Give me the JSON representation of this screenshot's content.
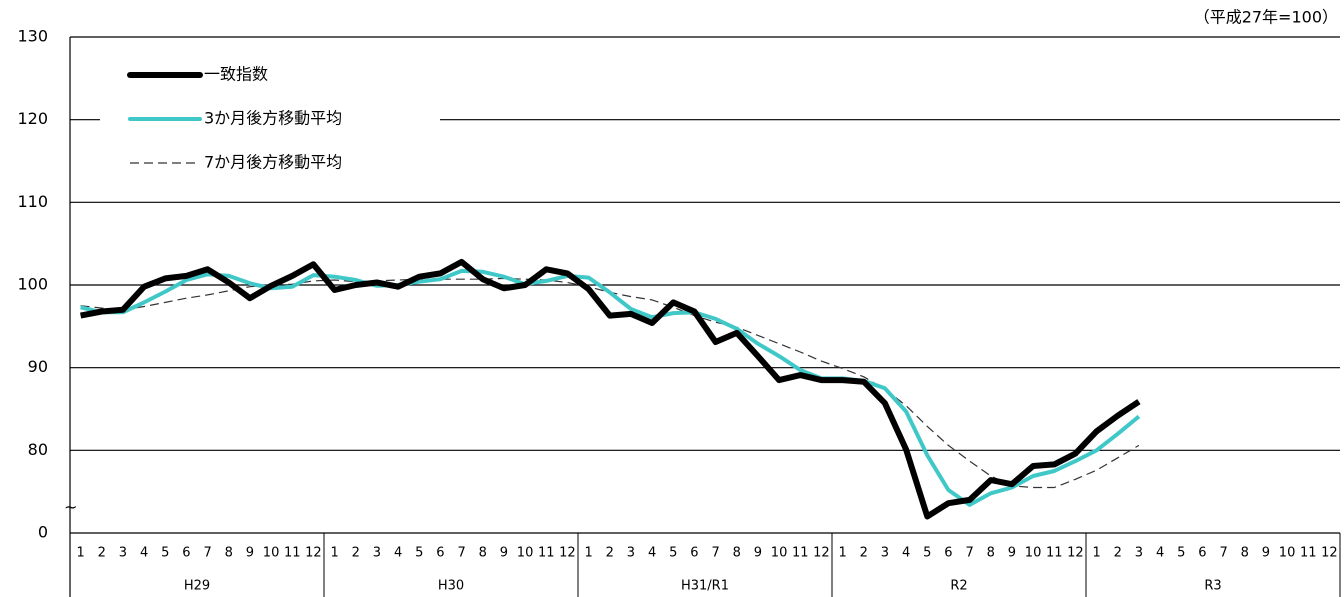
{
  "chart_data": {
    "type": "line",
    "unit_note": "（平成27年=100）",
    "axis_break": "~",
    "categories": [
      "1",
      "2",
      "3",
      "4",
      "5",
      "6",
      "7",
      "8",
      "9",
      "10",
      "11",
      "12",
      "1",
      "2",
      "3",
      "4",
      "5",
      "6",
      "7",
      "8",
      "9",
      "10",
      "11",
      "12",
      "1",
      "2",
      "3",
      "4",
      "5",
      "6",
      "7",
      "8",
      "9",
      "10",
      "11",
      "12",
      "1",
      "2",
      "3",
      "4",
      "5",
      "6",
      "7",
      "8",
      "9",
      "10",
      "11",
      "12",
      "1",
      "2",
      "3",
      "4",
      "5",
      "6",
      "7",
      "8",
      "9",
      "10",
      "11",
      "12"
    ],
    "groups": [
      "H29",
      "H30",
      "H31/R1",
      "R2",
      "R3"
    ],
    "ylim": [
      70,
      130
    ],
    "yticks": [
      {
        "value": 70,
        "label": "0"
      },
      80,
      90,
      100,
      110,
      120,
      130
    ],
    "grid": true,
    "legend": "upper left",
    "series": [
      {
        "name": "一致指数",
        "color": "#000000",
        "style": "solid",
        "width": 6,
        "values": [
          96.3,
          96.8,
          97.0,
          99.8,
          100.8,
          101.1,
          101.9,
          100.3,
          98.4,
          99.9,
          101.1,
          102.5,
          99.4,
          100.0,
          100.3,
          99.8,
          101.0,
          101.4,
          102.8,
          100.7,
          99.6,
          100.0,
          101.9,
          101.4,
          99.5,
          96.3,
          96.5,
          95.4,
          97.9,
          96.8,
          93.1,
          94.2,
          91.4,
          88.5,
          89.1,
          88.5,
          88.5,
          88.3,
          85.7,
          80.1,
          72.0,
          73.6,
          74.0,
          76.4,
          75.9,
          78.1,
          78.3,
          79.6,
          82.3,
          84.2,
          85.9,
          null,
          null,
          null,
          null,
          null,
          null,
          null,
          null,
          null
        ]
      },
      {
        "name": "3か月後方移動平均",
        "color": "#40c8c8",
        "style": "solid",
        "width": 4,
        "values": [
          97.3,
          96.7,
          96.7,
          97.9,
          99.2,
          100.6,
          101.3,
          101.1,
          100.2,
          99.6,
          99.8,
          101.2,
          101.0,
          100.6,
          99.9,
          100.0,
          100.4,
          100.7,
          101.7,
          101.6,
          101.0,
          100.1,
          100.5,
          101.1,
          100.9,
          99.1,
          97.1,
          96.1,
          96.6,
          96.7,
          95.9,
          94.7,
          92.9,
          91.4,
          89.7,
          88.7,
          88.7,
          88.4,
          87.5,
          84.7,
          79.4,
          75.2,
          73.4,
          74.8,
          75.5,
          76.9,
          77.5,
          78.7,
          80.0,
          82.0,
          84.1,
          null,
          null,
          null,
          null,
          null,
          null,
          null,
          null,
          null
        ]
      },
      {
        "name": "7か月後方移動平均",
        "color": "#333333",
        "style": "dashed",
        "width": 1.2,
        "values": [
          97.5,
          97.2,
          97.0,
          97.4,
          97.9,
          98.4,
          98.8,
          99.3,
          99.8,
          100.0,
          100.1,
          100.5,
          100.6,
          100.4,
          100.5,
          100.6,
          100.7,
          100.7,
          100.7,
          100.7,
          100.8,
          100.7,
          100.6,
          100.3,
          99.8,
          99.1,
          98.6,
          98.2,
          97.3,
          96.3,
          95.5,
          94.9,
          93.9,
          92.9,
          91.9,
          90.8,
          89.9,
          88.9,
          87.4,
          85.4,
          82.9,
          80.6,
          78.7,
          76.9,
          75.7,
          75.5,
          75.5,
          76.5,
          77.6,
          79.1,
          80.6,
          null,
          null,
          null,
          null,
          null,
          null,
          null,
          null,
          null
        ]
      }
    ]
  }
}
